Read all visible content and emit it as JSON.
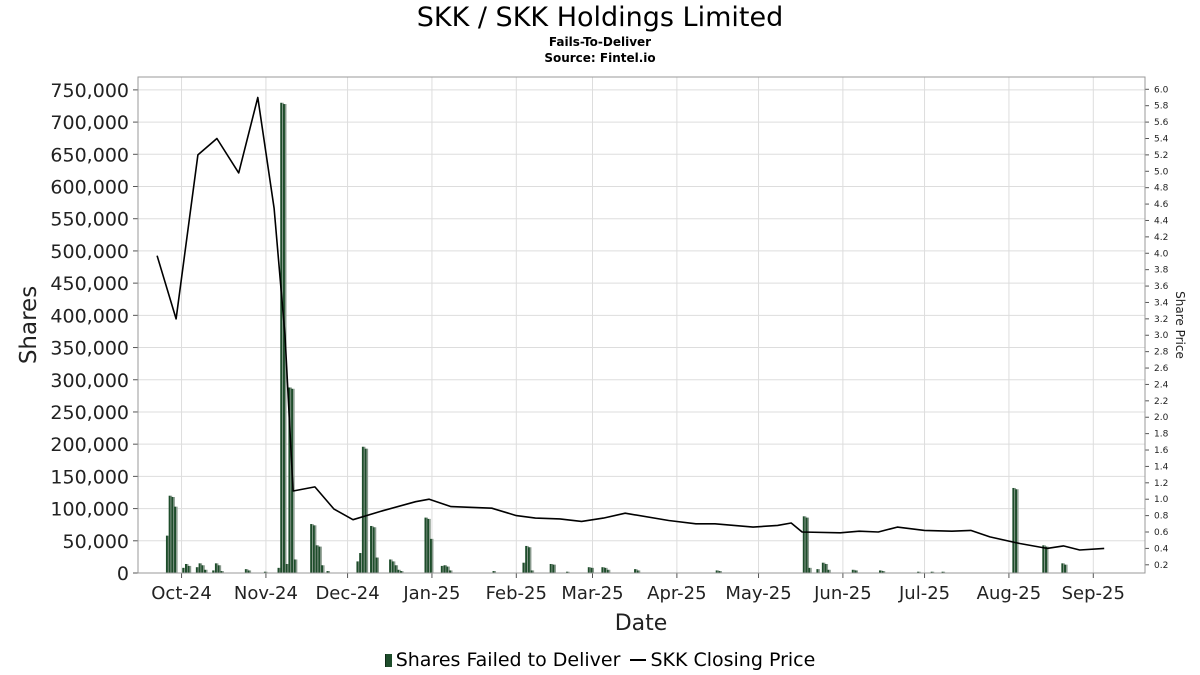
{
  "header": {
    "title": "SKK / SKK Holdings Limited",
    "subtitle": "Fails-To-Deliver",
    "source": "Source: Fintel.io"
  },
  "legend": {
    "bars_label": "Shares Failed to Deliver",
    "line_label": "SKK Closing Price"
  },
  "colors": {
    "bar": "#1e4d2b",
    "bar_light": "#8a9a8e",
    "line": "#000000",
    "grid": "#dddddd"
  },
  "chart_data": {
    "type": "bar",
    "title": "SKK / SKK Holdings Limited",
    "subtitle": "Fails-To-Deliver",
    "xlabel": "Date",
    "ylabel": "Shares",
    "y2label": "Share Price",
    "ylim": [
      0,
      770000
    ],
    "y2lim": [
      0.1,
      6.15
    ],
    "xlim": [
      "2024-09-15",
      "2025-09-20"
    ],
    "grid": true,
    "legend_position": "bottom",
    "yticks": [
      0,
      50000,
      100000,
      150000,
      200000,
      250000,
      300000,
      350000,
      400000,
      450000,
      500000,
      550000,
      600000,
      650000,
      700000,
      750000
    ],
    "ytick_labels": [
      "0",
      "50,000",
      "100,000",
      "150,000",
      "200,000",
      "250,000",
      "300,000",
      "350,000",
      "400,000",
      "450,000",
      "500,000",
      "550,000",
      "600,000",
      "650,000",
      "700,000",
      "750,000"
    ],
    "y2ticks": [
      0.2,
      0.4,
      0.6,
      0.8,
      1.0,
      1.2,
      1.4,
      1.6,
      1.8,
      2.0,
      2.2,
      2.4,
      2.6,
      2.8,
      3.0,
      3.2,
      3.4,
      3.6,
      3.8,
      4.0,
      4.2,
      4.4,
      4.6,
      4.8,
      5.0,
      5.2,
      5.4,
      5.6,
      5.8,
      6.0
    ],
    "y2tick_labels": [
      "0.2",
      "0.4",
      "0.6",
      "0.8",
      "1.0",
      "1.2",
      "1.4",
      "1.6",
      "1.8",
      "2.0",
      "2.2",
      "2.4",
      "2.6",
      "2.8",
      "3.0",
      "3.2",
      "3.4",
      "3.6",
      "3.8",
      "4.0",
      "4.2",
      "4.4",
      "4.6",
      "4.8",
      "5.0",
      "5.2",
      "5.4",
      "5.6",
      "5.8",
      "6.0"
    ],
    "xticks": [
      "2024-10-01",
      "2024-11-01",
      "2024-12-01",
      "2025-01-01",
      "2025-02-01",
      "2025-03-01",
      "2025-04-01",
      "2025-05-01",
      "2025-06-01",
      "2025-07-01",
      "2025-08-01",
      "2025-09-01"
    ],
    "xtick_labels": [
      "Oct-24",
      "Nov-24",
      "Dec-24",
      "Jan-25",
      "Feb-25",
      "Mar-25",
      "Apr-25",
      "May-25",
      "Jun-25",
      "Jul-25",
      "Aug-25",
      "Sep-25"
    ],
    "series": [
      {
        "name": "Shares Failed to Deliver",
        "type": "bar",
        "axis": "left",
        "points": [
          [
            "2024-09-26",
            58000
          ],
          [
            "2024-09-27",
            120000
          ],
          [
            "2024-09-28",
            118000
          ],
          [
            "2024-09-29",
            103000
          ],
          [
            "2024-10-02",
            8000
          ],
          [
            "2024-10-03",
            14000
          ],
          [
            "2024-10-04",
            11000
          ],
          [
            "2024-10-07",
            9000
          ],
          [
            "2024-10-08",
            15000
          ],
          [
            "2024-10-09",
            12000
          ],
          [
            "2024-10-10",
            5000
          ],
          [
            "2024-10-13",
            4000
          ],
          [
            "2024-10-14",
            15000
          ],
          [
            "2024-10-15",
            12000
          ],
          [
            "2024-10-16",
            3000
          ],
          [
            "2024-10-25",
            6000
          ],
          [
            "2024-10-26",
            4000
          ],
          [
            "2024-11-01",
            2000
          ],
          [
            "2024-11-06",
            8000
          ],
          [
            "2024-11-07",
            730000
          ],
          [
            "2024-11-08",
            728000
          ],
          [
            "2024-11-09",
            14000
          ],
          [
            "2024-11-10",
            288000
          ],
          [
            "2024-11-11",
            286000
          ],
          [
            "2024-11-12",
            21000
          ],
          [
            "2024-11-18",
            76000
          ],
          [
            "2024-11-19",
            74000
          ],
          [
            "2024-11-20",
            43000
          ],
          [
            "2024-11-21",
            41000
          ],
          [
            "2024-11-22",
            12000
          ],
          [
            "2024-11-24",
            3000
          ],
          [
            "2024-12-05",
            18000
          ],
          [
            "2024-12-06",
            31000
          ],
          [
            "2024-12-07",
            196000
          ],
          [
            "2024-12-08",
            193000
          ],
          [
            "2024-12-10",
            73000
          ],
          [
            "2024-12-11",
            71000
          ],
          [
            "2024-12-12",
            24000
          ],
          [
            "2024-12-17",
            21000
          ],
          [
            "2024-12-18",
            18000
          ],
          [
            "2024-12-19",
            12000
          ],
          [
            "2024-12-20",
            5000
          ],
          [
            "2024-12-21",
            3000
          ],
          [
            "2024-12-30",
            86000
          ],
          [
            "2024-12-31",
            84000
          ],
          [
            "2025-01-01",
            53000
          ],
          [
            "2025-01-05",
            11000
          ],
          [
            "2025-01-06",
            12000
          ],
          [
            "2025-01-07",
            10000
          ],
          [
            "2025-01-08",
            4000
          ],
          [
            "2025-01-24",
            3000
          ],
          [
            "2025-02-04",
            16000
          ],
          [
            "2025-02-05",
            42000
          ],
          [
            "2025-02-06",
            40000
          ],
          [
            "2025-02-07",
            4000
          ],
          [
            "2025-02-14",
            14000
          ],
          [
            "2025-02-15",
            13000
          ],
          [
            "2025-02-20",
            2000
          ],
          [
            "2025-02-28",
            9000
          ],
          [
            "2025-02-29",
            8000
          ],
          [
            "2025-03-05",
            9000
          ],
          [
            "2025-03-06",
            8000
          ],
          [
            "2025-03-07",
            5000
          ],
          [
            "2025-03-17",
            6000
          ],
          [
            "2025-03-18",
            4000
          ],
          [
            "2025-04-16",
            4000
          ],
          [
            "2025-04-17",
            3000
          ],
          [
            "2025-05-18",
            88000
          ],
          [
            "2025-05-19",
            86000
          ],
          [
            "2025-05-20",
            8000
          ],
          [
            "2025-05-23",
            6000
          ],
          [
            "2025-05-25",
            16000
          ],
          [
            "2025-05-26",
            14000
          ],
          [
            "2025-05-27",
            5000
          ],
          [
            "2025-06-05",
            5000
          ],
          [
            "2025-06-06",
            4000
          ],
          [
            "2025-06-15",
            4000
          ],
          [
            "2025-06-16",
            3000
          ],
          [
            "2025-06-29",
            2000
          ],
          [
            "2025-07-04",
            2000
          ],
          [
            "2025-07-08",
            2000
          ],
          [
            "2025-08-03",
            132000
          ],
          [
            "2025-08-04",
            130000
          ],
          [
            "2025-08-14",
            43000
          ],
          [
            "2025-08-15",
            41000
          ],
          [
            "2025-08-21",
            15000
          ],
          [
            "2025-08-22",
            13000
          ]
        ]
      },
      {
        "name": "SKK Closing Price",
        "type": "line",
        "axis": "right",
        "points": [
          [
            "2024-09-22",
            3.97
          ],
          [
            "2024-09-29",
            3.2
          ],
          [
            "2024-10-07",
            5.2
          ],
          [
            "2024-10-14",
            5.4
          ],
          [
            "2024-10-22",
            4.98
          ],
          [
            "2024-10-29",
            5.9
          ],
          [
            "2024-11-04",
            4.55
          ],
          [
            "2024-11-08",
            3.0
          ],
          [
            "2024-11-11",
            1.1
          ],
          [
            "2024-11-19",
            1.15
          ],
          [
            "2024-11-26",
            0.88
          ],
          [
            "2024-12-03",
            0.75
          ],
          [
            "2024-12-14",
            0.86
          ],
          [
            "2024-12-26",
            0.97
          ],
          [
            "2024-12-31",
            1.0
          ],
          [
            "2025-01-08",
            0.91
          ],
          [
            "2025-01-23",
            0.89
          ],
          [
            "2025-02-01",
            0.8
          ],
          [
            "2025-02-08",
            0.77
          ],
          [
            "2025-02-17",
            0.76
          ],
          [
            "2025-02-25",
            0.73
          ],
          [
            "2025-03-05",
            0.77
          ],
          [
            "2025-03-13",
            0.83
          ],
          [
            "2025-03-29",
            0.74
          ],
          [
            "2025-04-08",
            0.7
          ],
          [
            "2025-04-15",
            0.7
          ],
          [
            "2025-04-29",
            0.66
          ],
          [
            "2025-05-08",
            0.68
          ],
          [
            "2025-05-13",
            0.71
          ],
          [
            "2025-05-17",
            0.6
          ],
          [
            "2025-05-31",
            0.59
          ],
          [
            "2025-06-07",
            0.61
          ],
          [
            "2025-06-14",
            0.6
          ],
          [
            "2025-06-21",
            0.66
          ],
          [
            "2025-07-01",
            0.62
          ],
          [
            "2025-07-11",
            0.61
          ],
          [
            "2025-07-18",
            0.62
          ],
          [
            "2025-07-25",
            0.54
          ],
          [
            "2025-08-05",
            0.46
          ],
          [
            "2025-08-15",
            0.4
          ],
          [
            "2025-08-21",
            0.43
          ],
          [
            "2025-08-27",
            0.38
          ],
          [
            "2025-09-05",
            0.4
          ]
        ]
      }
    ]
  }
}
